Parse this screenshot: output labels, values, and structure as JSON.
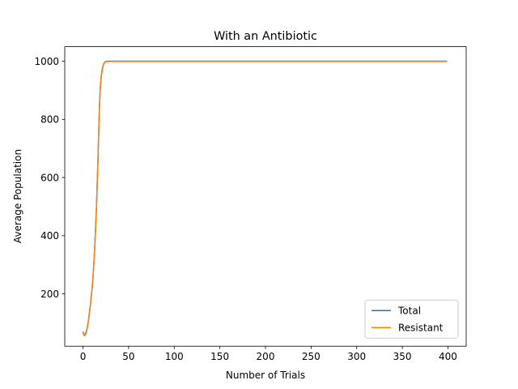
{
  "chart_data": {
    "type": "line",
    "title": "With an Antibiotic",
    "xlabel": "Number of Trials",
    "ylabel": "Average Population",
    "xlim": [
      -20,
      420
    ],
    "ylim": [
      20,
      1050
    ],
    "xticks": [
      0,
      50,
      100,
      150,
      200,
      250,
      300,
      350,
      400
    ],
    "yticks": [
      200,
      400,
      600,
      800,
      1000
    ],
    "grid": false,
    "legend_position": "lower right",
    "series": [
      {
        "name": "Total",
        "color": "#1f77b4",
        "x": [
          0,
          1,
          2,
          3,
          4,
          5,
          6,
          7,
          8,
          9,
          10,
          11,
          12,
          13,
          14,
          15,
          16,
          17,
          18,
          19,
          20,
          21,
          22,
          23,
          24,
          25,
          26,
          27,
          30,
          50,
          100,
          150,
          200,
          250,
          300,
          350,
          399
        ],
        "y": [
          70,
          60,
          58,
          65,
          75,
          90,
          110,
          135,
          160,
          190,
          220,
          260,
          310,
          370,
          440,
          520,
          620,
          730,
          840,
          910,
          950,
          970,
          985,
          993,
          997,
          999,
          1000,
          1000,
          1000,
          1000,
          1000,
          1000,
          1000,
          1000,
          1000,
          1000,
          1000
        ]
      },
      {
        "name": "Resistant",
        "color": "#ff7f0e",
        "x": [
          0,
          1,
          2,
          3,
          4,
          5,
          6,
          7,
          8,
          9,
          10,
          11,
          12,
          13,
          14,
          15,
          16,
          17,
          18,
          19,
          20,
          21,
          22,
          23,
          24,
          25,
          26,
          27,
          30,
          50,
          100,
          150,
          200,
          250,
          300,
          350,
          399
        ],
        "y": [
          68,
          58,
          56,
          62,
          72,
          88,
          108,
          132,
          158,
          188,
          218,
          258,
          308,
          368,
          438,
          518,
          618,
          728,
          838,
          908,
          948,
          968,
          984,
          992,
          996,
          998,
          999,
          999,
          999,
          999,
          999,
          999,
          999,
          999,
          999,
          999,
          999
        ]
      }
    ]
  }
}
